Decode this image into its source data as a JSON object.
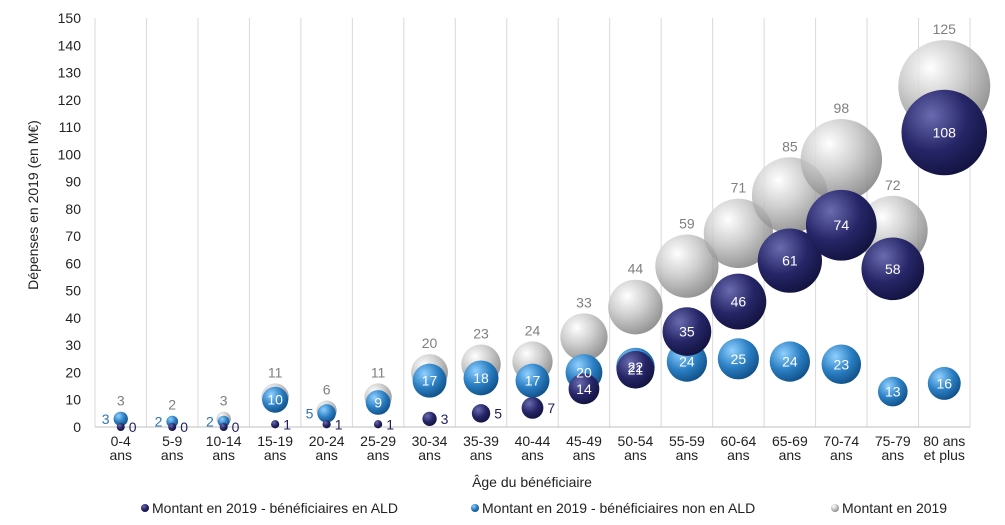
{
  "chart_data": {
    "type": "bubble",
    "xlabel": "Âge du bénéficiaire",
    "ylabel": "Dépenses en 2019 (en M€)",
    "ylim": [
      0,
      150
    ],
    "yticks": [
      0,
      10,
      20,
      30,
      40,
      50,
      60,
      70,
      80,
      90,
      100,
      110,
      120,
      130,
      140,
      150
    ],
    "grid": "vertical",
    "legend_position": "bottom",
    "categories": [
      [
        "0-4",
        "ans"
      ],
      [
        "5-9",
        "ans"
      ],
      [
        "10-14",
        "ans"
      ],
      [
        "15-19",
        "ans"
      ],
      [
        "20-24",
        "ans"
      ],
      [
        "25-29",
        "ans"
      ],
      [
        "30-34",
        "ans"
      ],
      [
        "35-39",
        "ans"
      ],
      [
        "40-44",
        "ans"
      ],
      [
        "45-49",
        "ans"
      ],
      [
        "50-54",
        "ans"
      ],
      [
        "55-59",
        "ans"
      ],
      [
        "60-64",
        "ans"
      ],
      [
        "65-69",
        "ans"
      ],
      [
        "70-74",
        "ans"
      ],
      [
        "75-79",
        "ans"
      ],
      [
        "80 ans",
        "et plus"
      ]
    ],
    "series": [
      {
        "name": "Montant en 2019 - bénéficiaires en ALD",
        "color": "#1f1f5c",
        "values": [
          0,
          0,
          0,
          1,
          1,
          1,
          3,
          5,
          7,
          14,
          21,
          35,
          46,
          61,
          74,
          58,
          108
        ]
      },
      {
        "name": "Montant en 2019 - bénéficiaires non en ALD",
        "color": "#2e86c8",
        "values": [
          3,
          2,
          2,
          10,
          5,
          9,
          17,
          18,
          17,
          20,
          22,
          24,
          25,
          24,
          23,
          13,
          16
        ]
      },
      {
        "name": "Montant en 2019",
        "color": "#a9a9a9",
        "values": [
          3,
          2,
          3,
          11,
          6,
          11,
          20,
          23,
          24,
          33,
          44,
          59,
          71,
          85,
          98,
          72,
          125
        ]
      }
    ]
  }
}
